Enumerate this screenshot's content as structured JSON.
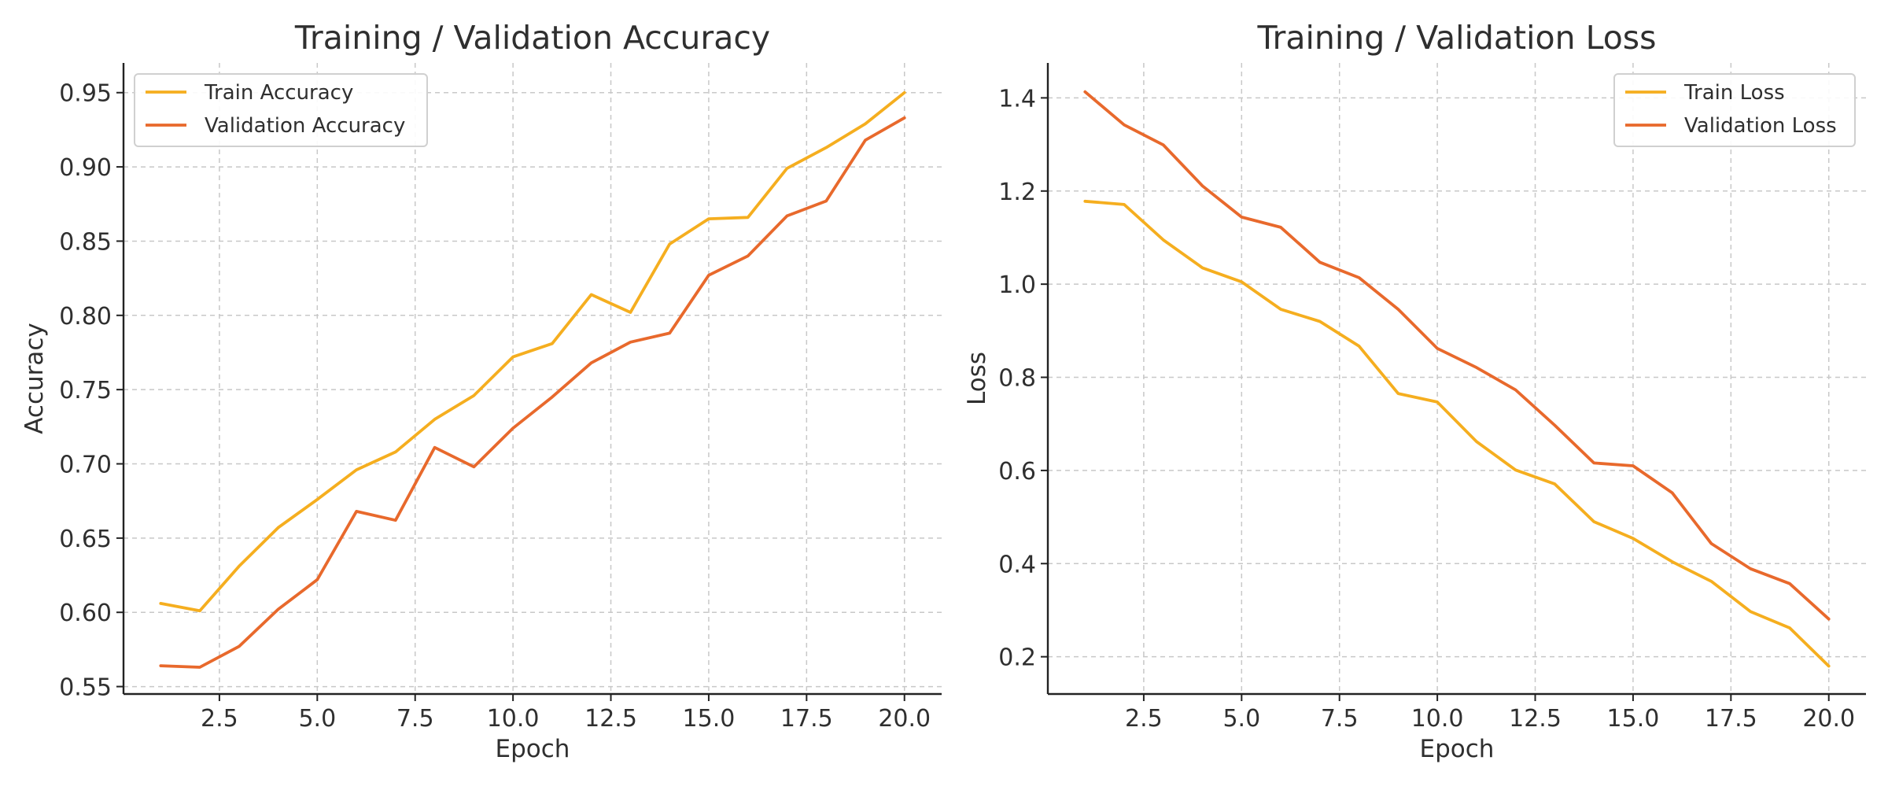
{
  "chart_data": [
    {
      "type": "line",
      "title": "Training / Validation Accuracy",
      "xlabel": "Epoch",
      "ylabel": "Accuracy",
      "xlim": [
        0.05,
        20.95
      ],
      "ylim": [
        0.545,
        0.97
      ],
      "xticks": [
        "2.5",
        "5.0",
        "7.5",
        "10.0",
        "12.5",
        "15.0",
        "17.5",
        "20.0"
      ],
      "yticks": [
        "0.55",
        "0.60",
        "0.65",
        "0.70",
        "0.75",
        "0.80",
        "0.85",
        "0.90",
        "0.95"
      ],
      "grid": true,
      "legend_position": "top-left",
      "x": [
        1,
        2,
        3,
        4,
        5,
        6,
        7,
        8,
        9,
        10,
        11,
        12,
        13,
        14,
        15,
        16,
        17,
        18,
        19,
        20
      ],
      "series": [
        {
          "name": "Train Accuracy",
          "color": "#F5AE1F",
          "values": [
            0.606,
            0.601,
            0.631,
            0.657,
            0.676,
            0.696,
            0.708,
            0.73,
            0.746,
            0.772,
            0.781,
            0.814,
            0.802,
            0.848,
            0.865,
            0.866,
            0.899,
            0.913,
            0.929,
            0.95
          ]
        },
        {
          "name": "Validation Accuracy",
          "color": "#E8692C",
          "values": [
            0.564,
            0.563,
            0.577,
            0.602,
            0.622,
            0.668,
            0.662,
            0.711,
            0.698,
            0.724,
            0.745,
            0.768,
            0.782,
            0.788,
            0.827,
            0.84,
            0.867,
            0.877,
            0.918,
            0.933
          ]
        }
      ]
    },
    {
      "type": "line",
      "title": "Training / Validation Loss",
      "xlabel": "Epoch",
      "ylabel": "Loss",
      "xlim": [
        0.05,
        20.95
      ],
      "ylim": [
        0.12,
        1.475
      ],
      "xticks": [
        "2.5",
        "5.0",
        "7.5",
        "10.0",
        "12.5",
        "15.0",
        "17.5",
        "20.0"
      ],
      "yticks": [
        "0.2",
        "0.4",
        "0.6",
        "0.8",
        "1.0",
        "1.2",
        "1.4"
      ],
      "grid": true,
      "legend_position": "top-right",
      "x": [
        1,
        2,
        3,
        4,
        5,
        6,
        7,
        8,
        9,
        10,
        11,
        12,
        13,
        14,
        15,
        16,
        17,
        18,
        19,
        20
      ],
      "series": [
        {
          "name": "Train Loss",
          "color": "#F5AE1F",
          "values": [
            1.178,
            1.171,
            1.095,
            1.035,
            1.005,
            0.946,
            0.92,
            0.867,
            0.765,
            0.747,
            0.662,
            0.601,
            0.571,
            0.49,
            0.454,
            0.404,
            0.362,
            0.297,
            0.262,
            0.18
          ]
        },
        {
          "name": "Validation Loss",
          "color": "#E8692C",
          "values": [
            1.413,
            1.342,
            1.299,
            1.211,
            1.144,
            1.122,
            1.047,
            1.014,
            0.946,
            0.862,
            0.821,
            0.773,
            0.697,
            0.616,
            0.61,
            0.552,
            0.443,
            0.389,
            0.357,
            0.281
          ]
        }
      ]
    }
  ]
}
